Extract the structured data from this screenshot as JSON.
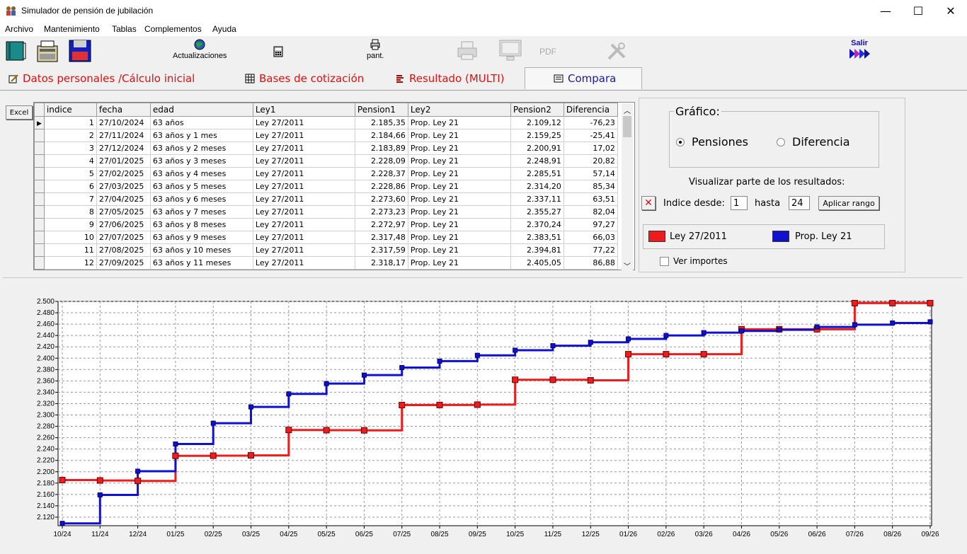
{
  "window": {
    "title": "Simulador de pensión de jubilación",
    "minimize": "—",
    "maximize": "☐",
    "close": "✕"
  },
  "menu": [
    "Archivo",
    "Mantenimiento",
    "Tablas",
    "Complementos",
    "Ayuda"
  ],
  "toolbar": {
    "actualizaciones": "Actualizaciones",
    "pant": "pant.",
    "pdf": "PDF",
    "salir": "Salir"
  },
  "tabs": [
    "Datos personales /Cálculo inicial",
    "Bases de cotización",
    "Resultado (MULTI)",
    "Compara"
  ],
  "excel_label": "Excel",
  "table": {
    "columns": [
      "indice",
      "fecha",
      "edad",
      "Ley1",
      "Pension1",
      "Ley2",
      "Pension2",
      "Diferencia"
    ],
    "rows": [
      [
        "1",
        "27/10/2024",
        "63 años",
        "Ley 27/2011",
        "2.185,35",
        "Prop. Ley 21",
        "2.109,12",
        "-76,23"
      ],
      [
        "2",
        "27/11/2024",
        "63 años y 1 mes",
        "Ley 27/2011",
        "2.184,66",
        "Prop. Ley 21",
        "2.159,25",
        "-25,41"
      ],
      [
        "3",
        "27/12/2024",
        "63 años y 2 meses",
        "Ley 27/2011",
        "2.183,89",
        "Prop. Ley 21",
        "2.200,91",
        "17,02"
      ],
      [
        "4",
        "27/01/2025",
        "63 años y 3 meses",
        "Ley 27/2011",
        "2.228,09",
        "Prop. Ley 21",
        "2.248,91",
        "20,82"
      ],
      [
        "5",
        "27/02/2025",
        "63 años y 4 meses",
        "Ley 27/2011",
        "2.228,37",
        "Prop. Ley 21",
        "2.285,51",
        "57,14"
      ],
      [
        "6",
        "27/03/2025",
        "63 años y 5 meses",
        "Ley 27/2011",
        "2.228,86",
        "Prop. Ley 21",
        "2.314,20",
        "85,34"
      ],
      [
        "7",
        "27/04/2025",
        "63 años y 6 meses",
        "Ley 27/2011",
        "2.273,60",
        "Prop. Ley 21",
        "2.337,11",
        "63,51"
      ],
      [
        "8",
        "27/05/2025",
        "63 años y 7 meses",
        "Ley 27/2011",
        "2.273,23",
        "Prop. Ley 21",
        "2.355,27",
        "82,04"
      ],
      [
        "9",
        "27/06/2025",
        "63 años y 8 meses",
        "Ley 27/2011",
        "2.272,97",
        "Prop. Ley 21",
        "2.370,24",
        "97,27"
      ],
      [
        "10",
        "27/07/2025",
        "63 años y 9 meses",
        "Ley 27/2011",
        "2.317,48",
        "Prop. Ley 21",
        "2.383,51",
        "66,03"
      ],
      [
        "11",
        "27/08/2025",
        "63 años y 10 meses",
        "Ley 27/2011",
        "2.317,59",
        "Prop. Ley 21",
        "2.394,81",
        "77,22"
      ],
      [
        "12",
        "27/09/2025",
        "63 años y 11 meses",
        "Ley 27/2011",
        "2.318,17",
        "Prop. Ley 21",
        "2.405,05",
        "86,88"
      ]
    ]
  },
  "grafico": {
    "title": "Gráfico:",
    "opt1": "Pensiones",
    "opt2": "Diferencia"
  },
  "visualizar": "Visualizar parte de los resultados:",
  "indice_desde": "Indice desde:",
  "desde_value": "1",
  "hasta": "hasta",
  "hasta_value": "24",
  "aplicar": "Aplicar rango",
  "legend": {
    "ley1": "Ley 27/2011",
    "ley2": "Prop. Ley 21"
  },
  "ver_importes": "Ver importes",
  "colors": {
    "ley1": "#ee1c1c",
    "ley2": "#1010d0"
  },
  "chart_data": {
    "type": "line",
    "step": true,
    "categories": [
      "10/24",
      "11/24",
      "12/24",
      "01/25",
      "02/25",
      "03/25",
      "04/25",
      "05/25",
      "06/25",
      "07/25",
      "08/25",
      "09/25",
      "10/25",
      "11/25",
      "12/25",
      "01/26",
      "02/26",
      "03/26",
      "04/26",
      "05/26",
      "06/26",
      "07/26",
      "08/26",
      "09/26"
    ],
    "series": [
      {
        "name": "Ley 27/2011",
        "values": [
          2185.35,
          2184.66,
          2183.89,
          2228.09,
          2228.37,
          2228.86,
          2273.6,
          2273.23,
          2272.97,
          2317.48,
          2317.59,
          2318.17,
          2362,
          2362,
          2361,
          2407,
          2407,
          2407,
          2451,
          2451,
          2451,
          2497,
          2497,
          2497
        ]
      },
      {
        "name": "Prop. Ley 21",
        "values": [
          2109.12,
          2159.25,
          2200.91,
          2248.91,
          2285.51,
          2314.2,
          2337.11,
          2355.27,
          2370.24,
          2383.51,
          2394.81,
          2405.05,
          2414,
          2422,
          2428,
          2434,
          2440,
          2445,
          2448,
          2450,
          2455,
          2459,
          2462,
          2464
        ]
      }
    ],
    "yticks": [
      "2.120",
      "2.140",
      "2.160",
      "2.180",
      "2.200",
      "2.220",
      "2.240",
      "2.260",
      "2.280",
      "2.300",
      "2.320",
      "2.340",
      "2.360",
      "2.380",
      "2.400",
      "2.420",
      "2.440",
      "2.460",
      "2.480",
      "2.500"
    ],
    "ylim": [
      2105,
      2500
    ],
    "grid": true
  }
}
